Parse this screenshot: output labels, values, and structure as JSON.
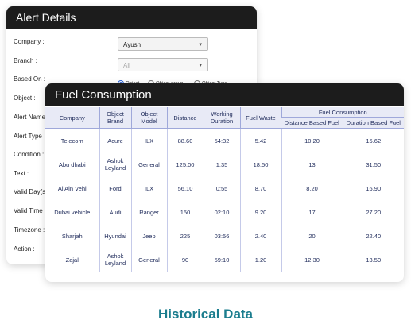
{
  "alert_details": {
    "title": "Alert Details",
    "labels": [
      "Company :",
      "Branch :",
      "Based On :",
      "Object :",
      "Alert Name",
      "Alert Type",
      "Condition :",
      "Text :",
      "Valid Day(s)",
      "Valid Time",
      "Timezone :",
      "Action :"
    ],
    "company_select": "Ayush",
    "branch_select": "All",
    "based_on_options": [
      "Object",
      "Object group",
      "Object Type"
    ]
  },
  "fuel_consumption": {
    "title": "Fuel Consumption",
    "headers": [
      "Company",
      "Object Brand",
      "Object Model",
      "Distance",
      "Working Duration",
      "Fuel Waste"
    ],
    "group_header": "Fuel Consumption",
    "sub_headers": [
      "Distance Based Fuel",
      "Duration Based Fuel"
    ],
    "rows": [
      [
        "Telecom",
        "Acure",
        "ILX",
        "88.60",
        "54:32",
        "5.42",
        "10.20",
        "15.62"
      ],
      [
        "Abu dhabi",
        "Ashok Leyland",
        "General",
        "125.00",
        "1:35",
        "18.50",
        "13",
        "31.50"
      ],
      [
        "Al Ain Vehi",
        "Ford",
        "ILX",
        "56.10",
        "0:55",
        "8.70",
        "8.20",
        "16.90"
      ],
      [
        "Dubai vehicle",
        "Audi",
        "Ranger",
        "150",
        "02:10",
        "9.20",
        "17",
        "27.20"
      ],
      [
        "Sharjah",
        "Hyundai",
        "Jeep",
        "225",
        "03:56",
        "2.40",
        "20",
        "22.40"
      ],
      [
        "Zajal",
        "Ashok Leyland",
        "General",
        "90",
        "59:10",
        "1.20",
        "12.30",
        "13.50"
      ]
    ]
  },
  "caption": "Historical Data"
}
